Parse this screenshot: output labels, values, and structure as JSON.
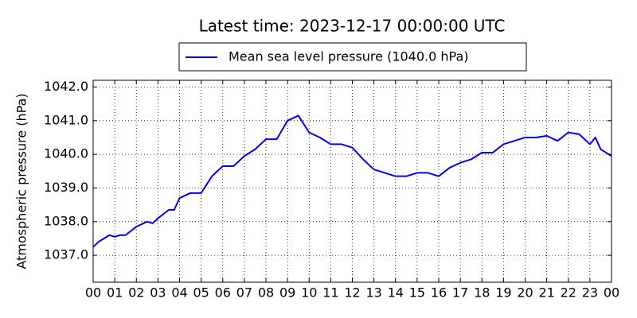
{
  "chart_data": {
    "type": "line",
    "title": "Latest time: 2023-12-17 00:00:00 UTC",
    "y_label": "Atmospheric pressure (hPa)",
    "x": [
      0,
      0.25,
      0.5,
      0.75,
      1,
      1.25,
      1.5,
      2,
      2.5,
      2.75,
      3,
      3.5,
      3.75,
      4,
      4.5,
      5,
      5.5,
      6,
      6.5,
      7,
      7.5,
      8,
      8.5,
      9,
      9.5,
      10,
      10.5,
      11,
      11.5,
      12,
      12.5,
      13,
      13.5,
      14,
      14.5,
      15,
      15.5,
      16,
      16.5,
      17,
      17.5,
      18,
      18.5,
      19,
      19.5,
      20,
      20.5,
      21,
      21.5,
      22,
      22.5,
      23,
      23.25,
      23.5,
      24
    ],
    "series": [
      {
        "name": "Mean sea level pressure (1040.0 hPa)",
        "color": "#0000ff",
        "values": [
          1037.25,
          1037.4,
          1037.5,
          1037.6,
          1037.55,
          1037.6,
          1037.6,
          1037.85,
          1038.0,
          1037.95,
          1038.1,
          1038.35,
          1038.35,
          1038.7,
          1038.85,
          1038.85,
          1039.35,
          1039.65,
          1039.65,
          1039.95,
          1040.15,
          1040.45,
          1040.45,
          1041.0,
          1041.15,
          1040.65,
          1040.5,
          1040.3,
          1040.3,
          1040.2,
          1039.85,
          1039.55,
          1039.45,
          1039.35,
          1039.35,
          1039.45,
          1039.45,
          1039.35,
          1039.6,
          1039.75,
          1039.85,
          1040.05,
          1040.05,
          1040.3,
          1040.4,
          1040.5,
          1040.5,
          1040.55,
          1040.4,
          1040.65,
          1040.6,
          1040.3,
          1040.5,
          1040.15,
          1039.95
        ]
      }
    ],
    "xlim": [
      0,
      24
    ],
    "xticks": [
      {
        "value": 0,
        "label": "00"
      },
      {
        "value": 1,
        "label": "01"
      },
      {
        "value": 2,
        "label": "02"
      },
      {
        "value": 3,
        "label": "03"
      },
      {
        "value": 4,
        "label": "04"
      },
      {
        "value": 5,
        "label": "05"
      },
      {
        "value": 6,
        "label": "06"
      },
      {
        "value": 7,
        "label": "07"
      },
      {
        "value": 8,
        "label": "08"
      },
      {
        "value": 9,
        "label": "09"
      },
      {
        "value": 10,
        "label": "10"
      },
      {
        "value": 11,
        "label": "11"
      },
      {
        "value": 12,
        "label": "12"
      },
      {
        "value": 13,
        "label": "13"
      },
      {
        "value": 14,
        "label": "14"
      },
      {
        "value": 15,
        "label": "15"
      },
      {
        "value": 16,
        "label": "16"
      },
      {
        "value": 17,
        "label": "17"
      },
      {
        "value": 18,
        "label": "18"
      },
      {
        "value": 19,
        "label": "19"
      },
      {
        "value": 20,
        "label": "20"
      },
      {
        "value": 21,
        "label": "21"
      },
      {
        "value": 22,
        "label": "22"
      },
      {
        "value": 23,
        "label": "23"
      },
      {
        "value": 24,
        "label": "00"
      }
    ],
    "ylim": [
      1036.2,
      1042.2
    ],
    "yticks": [
      {
        "value": 1037,
        "label": "1037.0"
      },
      {
        "value": 1038,
        "label": "1038.0"
      },
      {
        "value": 1039,
        "label": "1039.0"
      },
      {
        "value": 1040,
        "label": "1040.0"
      },
      {
        "value": 1041,
        "label": "1041.0"
      },
      {
        "value": 1042,
        "label": "1042.0"
      }
    ],
    "grid": true,
    "legend": "top"
  }
}
